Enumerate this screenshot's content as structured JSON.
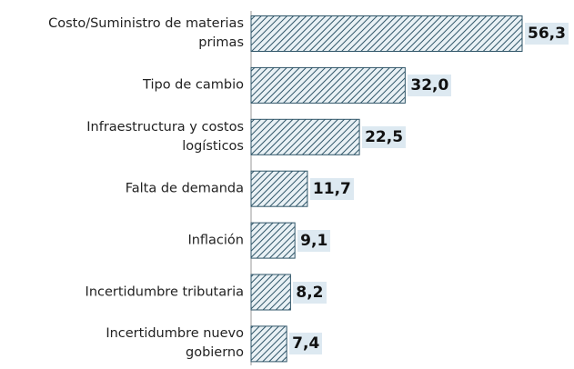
{
  "chart_data": {
    "type": "bar",
    "orientation": "horizontal",
    "categories": [
      "Costo/Suministro de materias\nprimas",
      "Tipo de cambio",
      "Infraestructura y costos\nlogísticos",
      "Falta de demanda",
      "Inflación",
      "Incertidumbre tributaria",
      "Incertidumbre nuevo\ngobierno"
    ],
    "values": [
      56.3,
      32.0,
      22.5,
      11.7,
      9.1,
      8.2,
      7.4
    ],
    "value_labels": [
      "56,3",
      "32,0",
      "22,5",
      "11,7",
      "9,1",
      "8,2",
      "7,4"
    ],
    "color": "#2f5568"
  }
}
